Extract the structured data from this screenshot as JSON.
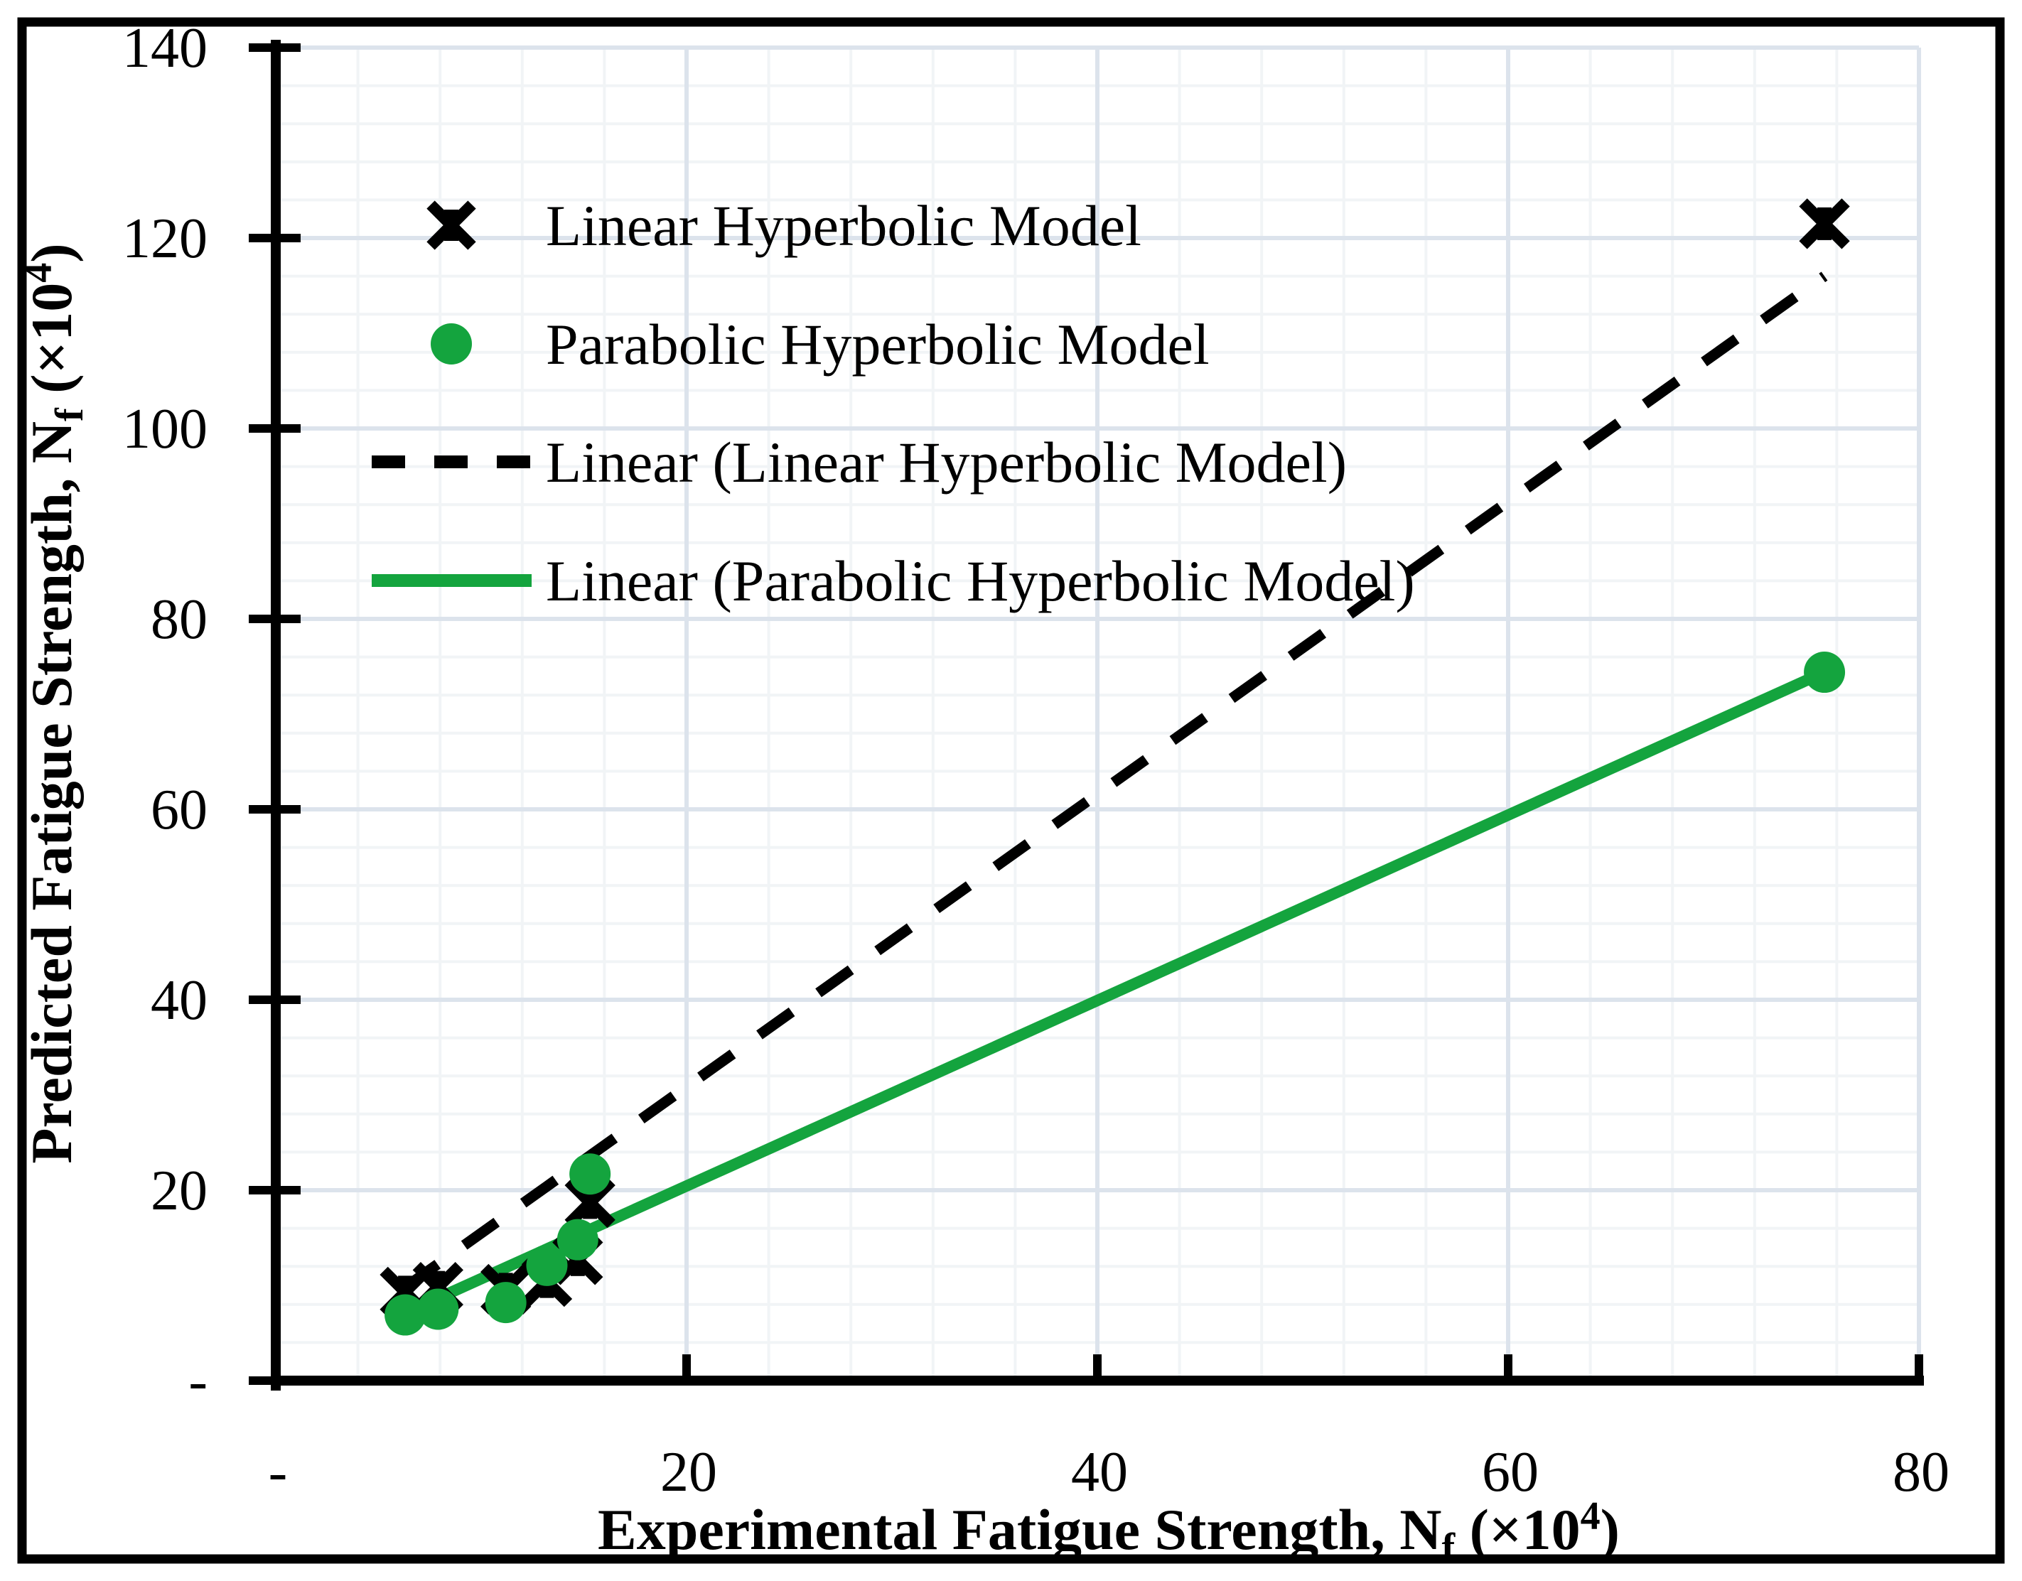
{
  "chart": {
    "background": "#ffffff",
    "border_color": "#000000",
    "colors": {
      "series_black": "#000000",
      "series_green": "#14a43e",
      "grid_major": "#dce3ec",
      "grid_minor": "#f1f4f6"
    },
    "legend": {
      "items": [
        {
          "label": "Linear Hyperbolic Model",
          "swatch": "x-marker",
          "color": "#000000"
        },
        {
          "label": "Parabolic Hyperbolic Model",
          "swatch": "circle",
          "color": "#14a43e"
        },
        {
          "label": "Linear (Linear Hyperbolic Model)",
          "swatch": "dashed-line",
          "color": "#000000"
        },
        {
          "label": "Linear (Parabolic Hyperbolic Model)",
          "swatch": "solid-line",
          "color": "#14a43e"
        }
      ]
    },
    "x_axis": {
      "title_prefix": "Experimental Fatigue Strength, N",
      "title_sub": "f",
      "title_mid": " (×10",
      "title_sup": "4",
      "title_suffix": ")",
      "ticks": [
        {
          "label": "-",
          "value": 0
        },
        {
          "label": "20",
          "value": 20
        },
        {
          "label": "40",
          "value": 40
        },
        {
          "label": "60",
          "value": 60
        },
        {
          "label": "80",
          "value": 80
        }
      ]
    },
    "y_axis": {
      "title_prefix": "Predicted Fatigue Strength, N",
      "title_sub": "f",
      "title_mid": " (×10",
      "title_sup": "4",
      "title_suffix": ")",
      "ticks": [
        {
          "label": "140",
          "value": 140
        },
        {
          "label": "120",
          "value": 120
        },
        {
          "label": "100",
          "value": 100
        },
        {
          "label": "80",
          "value": 80
        },
        {
          "label": "60",
          "value": 60
        },
        {
          "label": "40",
          "value": 40
        },
        {
          "label": "20",
          "value": 20
        },
        {
          "label": "-",
          "value": 0
        }
      ]
    }
  },
  "chart_data": {
    "type": "scatter",
    "title": "",
    "xlabel": "Experimental Fatigue Strength, Nf (×10^4)",
    "ylabel": "Predicted Fatigue Strength, Nf (×10^4)",
    "xlim": [
      0,
      80
    ],
    "ylim": [
      0,
      140
    ],
    "x_major_unit": 20,
    "x_minor_unit": 4,
    "y_major_unit": 20,
    "y_minor_unit": 4,
    "grid": true,
    "legend_position": "upper-left-inside",
    "x": [
      6.3,
      7.9,
      11.2,
      13.2,
      14.7,
      15.3,
      75.4
    ],
    "series": [
      {
        "name": "Linear Hyperbolic Model",
        "marker": "x",
        "color": "#000000",
        "values": [
          9.3,
          9.8,
          9.6,
          10.4,
          12.7,
          18.7,
          121.5
        ]
      },
      {
        "name": "Parabolic Hyperbolic Model",
        "marker": "circle",
        "color": "#14a43e",
        "values": [
          6.9,
          7.5,
          8.2,
          12.1,
          14.8,
          21.7,
          74.4
        ]
      }
    ],
    "trendlines": [
      {
        "name": "Linear (Linear Hyperbolic Model)",
        "style": "dashed",
        "color": "#000000",
        "x_start": 6.3,
        "y_start": 9.8,
        "x_end": 75.4,
        "y_end": 116.0
      },
      {
        "name": "Linear (Parabolic Hyperbolic Model)",
        "style": "solid",
        "color": "#14a43e",
        "x_start": 6.3,
        "y_start": 7.1,
        "x_end": 75.4,
        "y_end": 74.4
      }
    ]
  }
}
